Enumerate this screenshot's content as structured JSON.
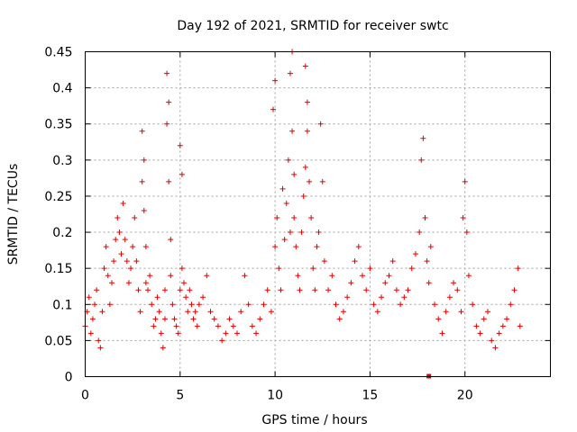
{
  "chart_data": {
    "type": "scatter",
    "title": "Day 192 of 2021, SRMTID for receiver swtc",
    "xlabel": "GPS time / hours",
    "ylabel": "SRMTID / TECUs",
    "xlim": [
      0,
      24.5
    ],
    "ylim": [
      0,
      0.45
    ],
    "x_ticks": [
      "0",
      "5",
      "10",
      "15",
      "20"
    ],
    "x_tick_values": [
      0,
      5,
      10,
      15,
      20
    ],
    "y_ticks": [
      "0",
      "0.05",
      "0.1",
      "0.15",
      "0.2",
      "0.25",
      "0.3",
      "0.35",
      "0.4",
      "0.45"
    ],
    "y_tick_values": [
      0,
      0.05,
      0.1,
      0.15,
      0.2,
      0.25,
      0.3,
      0.35,
      0.4,
      0.45
    ],
    "grid": true,
    "marker": "+",
    "series": [
      {
        "name": "SRMTID",
        "color": "#e00000",
        "x": [
          0.0,
          0.1,
          0.2,
          0.3,
          0.4,
          0.5,
          0.6,
          0.7,
          0.8,
          0.9,
          1.0,
          1.1,
          1.2,
          1.3,
          1.4,
          1.5,
          1.6,
          1.7,
          1.8,
          1.9,
          2.0,
          2.1,
          2.2,
          2.3,
          2.4,
          2.5,
          2.6,
          2.7,
          2.8,
          2.9,
          3.0,
          3.0,
          3.1,
          3.1,
          3.2,
          3.2,
          3.3,
          3.4,
          3.5,
          3.6,
          3.7,
          3.8,
          3.9,
          4.0,
          4.1,
          4.2,
          4.2,
          4.3,
          4.3,
          4.4,
          4.4,
          4.5,
          4.5,
          4.6,
          4.7,
          4.8,
          4.9,
          5.0,
          5.0,
          5.1,
          5.1,
          5.2,
          5.3,
          5.4,
          5.5,
          5.6,
          5.7,
          5.8,
          5.9,
          6.0,
          6.2,
          6.4,
          6.6,
          6.8,
          7.0,
          7.2,
          7.4,
          7.6,
          7.8,
          8.0,
          8.2,
          8.4,
          8.6,
          8.8,
          9.0,
          9.2,
          9.4,
          9.6,
          9.8,
          9.9,
          10.0,
          10.0,
          10.1,
          10.2,
          10.3,
          10.4,
          10.5,
          10.6,
          10.7,
          10.8,
          10.8,
          10.9,
          10.9,
          11.0,
          11.0,
          11.1,
          11.2,
          11.3,
          11.4,
          11.5,
          11.6,
          11.6,
          11.7,
          11.7,
          11.8,
          11.9,
          12.0,
          12.1,
          12.2,
          12.3,
          12.4,
          12.5,
          12.6,
          12.8,
          13.0,
          13.2,
          13.4,
          13.6,
          13.8,
          14.0,
          14.2,
          14.4,
          14.6,
          14.8,
          15.0,
          15.2,
          15.4,
          15.6,
          15.8,
          16.0,
          16.2,
          16.4,
          16.6,
          16.8,
          17.0,
          17.2,
          17.4,
          17.6,
          17.7,
          17.8,
          17.9,
          18.0,
          18.1,
          18.2,
          18.4,
          18.6,
          18.8,
          19.0,
          19.2,
          19.4,
          19.6,
          19.8,
          19.9,
          20.0,
          20.1,
          20.2,
          20.4,
          20.6,
          20.8,
          21.0,
          21.2,
          21.4,
          21.6,
          21.8,
          22.0,
          22.2,
          22.4,
          22.6,
          22.8,
          22.9
        ],
        "y": [
          0.07,
          0.09,
          0.11,
          0.06,
          0.08,
          0.1,
          0.12,
          0.05,
          0.04,
          0.09,
          0.15,
          0.18,
          0.14,
          0.1,
          0.13,
          0.16,
          0.19,
          0.22,
          0.2,
          0.17,
          0.24,
          0.19,
          0.16,
          0.13,
          0.15,
          0.18,
          0.22,
          0.16,
          0.12,
          0.09,
          0.34,
          0.27,
          0.3,
          0.23,
          0.18,
          0.13,
          0.12,
          0.14,
          0.1,
          0.07,
          0.08,
          0.11,
          0.09,
          0.06,
          0.04,
          0.08,
          0.12,
          0.35,
          0.42,
          0.38,
          0.27,
          0.19,
          0.14,
          0.1,
          0.08,
          0.07,
          0.06,
          0.12,
          0.32,
          0.28,
          0.15,
          0.13,
          0.11,
          0.09,
          0.12,
          0.1,
          0.08,
          0.09,
          0.07,
          0.1,
          0.11,
          0.14,
          0.09,
          0.08,
          0.07,
          0.05,
          0.06,
          0.08,
          0.07,
          0.06,
          0.09,
          0.14,
          0.1,
          0.07,
          0.06,
          0.08,
          0.1,
          0.12,
          0.09,
          0.37,
          0.41,
          0.18,
          0.22,
          0.15,
          0.12,
          0.26,
          0.19,
          0.24,
          0.3,
          0.2,
          0.42,
          0.45,
          0.34,
          0.28,
          0.22,
          0.18,
          0.14,
          0.12,
          0.2,
          0.25,
          0.29,
          0.43,
          0.34,
          0.38,
          0.27,
          0.22,
          0.15,
          0.12,
          0.18,
          0.2,
          0.35,
          0.27,
          0.16,
          0.12,
          0.14,
          0.1,
          0.08,
          0.09,
          0.11,
          0.13,
          0.16,
          0.18,
          0.14,
          0.12,
          0.15,
          0.1,
          0.09,
          0.11,
          0.13,
          0.14,
          0.16,
          0.12,
          0.1,
          0.11,
          0.12,
          0.15,
          0.17,
          0.2,
          0.3,
          0.33,
          0.22,
          0.16,
          0.13,
          0.18,
          0.1,
          0.08,
          0.06,
          0.09,
          0.11,
          0.13,
          0.12,
          0.09,
          0.22,
          0.27,
          0.2,
          0.14,
          0.1,
          0.07,
          0.06,
          0.08,
          0.09,
          0.05,
          0.04,
          0.06,
          0.07,
          0.08,
          0.1,
          0.12,
          0.15,
          0.07
        ],
        "highlight": {
          "x": 18.1,
          "y": 0.0
        }
      }
    ]
  }
}
